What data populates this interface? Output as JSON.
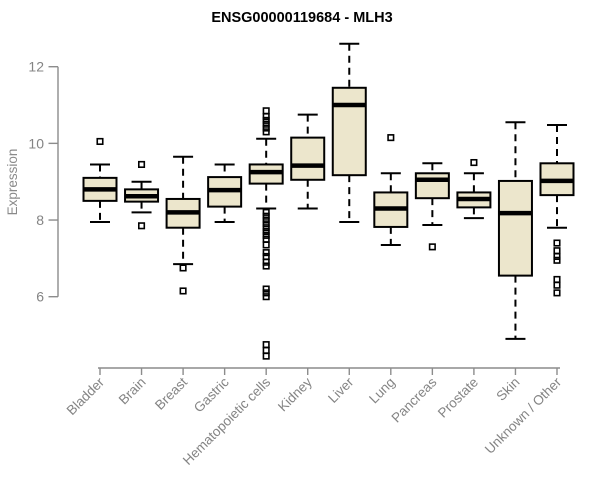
{
  "chart_data": {
    "type": "boxplot",
    "title": "ENSG00000119684 - MLH3",
    "ylabel": "Expression",
    "xlabel": "",
    "ylim": [
      6,
      12
    ],
    "yticks": [
      6,
      8,
      10,
      12
    ],
    "grid": false,
    "legend": "none",
    "categories": [
      "Bladder",
      "Brain",
      "Breast",
      "Gastric",
      "Hematopoietic cells",
      "Kidney",
      "Liver",
      "Lung",
      "Pancreas",
      "Prostate",
      "Skin",
      "Unknown / Other"
    ],
    "series": [
      {
        "category": "Bladder",
        "whisker_low": 7.95,
        "q1": 8.5,
        "median": 8.8,
        "q3": 9.1,
        "whisker_high": 9.45,
        "outliers": [
          10.05
        ]
      },
      {
        "category": "Brain",
        "whisker_low": 8.2,
        "q1": 8.48,
        "median": 8.62,
        "q3": 8.8,
        "whisker_high": 9.0,
        "outliers": [
          9.45,
          7.85
        ]
      },
      {
        "category": "Breast",
        "whisker_low": 6.85,
        "q1": 7.8,
        "median": 8.2,
        "q3": 8.55,
        "whisker_high": 9.65,
        "outliers": [
          6.75,
          6.15
        ]
      },
      {
        "category": "Gastric",
        "whisker_low": 7.95,
        "q1": 8.35,
        "median": 8.78,
        "q3": 9.12,
        "whisker_high": 9.45,
        "outliers": []
      },
      {
        "category": "Hematopoietic cells",
        "whisker_low": 8.3,
        "q1": 8.95,
        "median": 9.25,
        "q3": 9.45,
        "whisker_high": 10.12,
        "outliers": [
          10.3,
          10.4,
          10.5,
          10.6,
          10.7,
          10.85,
          8.2,
          8.1,
          8.0,
          7.9,
          7.8,
          7.7,
          7.6,
          7.5,
          7.35,
          7.15,
          7.05,
          6.9,
          6.8,
          6.2,
          6.1,
          6.0,
          4.75,
          4.6,
          4.45
        ]
      },
      {
        "category": "Kidney",
        "whisker_low": 8.3,
        "q1": 9.05,
        "median": 9.42,
        "q3": 10.15,
        "whisker_high": 10.75,
        "outliers": []
      },
      {
        "category": "Liver",
        "whisker_low": 7.95,
        "q1": 9.17,
        "median": 11.0,
        "q3": 11.45,
        "whisker_high": 12.6,
        "outliers": []
      },
      {
        "category": "Lung",
        "whisker_low": 7.35,
        "q1": 7.82,
        "median": 8.3,
        "q3": 8.72,
        "whisker_high": 9.22,
        "outliers": [
          10.15
        ]
      },
      {
        "category": "Pancreas",
        "whisker_low": 7.87,
        "q1": 8.57,
        "median": 9.05,
        "q3": 9.22,
        "whisker_high": 9.48,
        "outliers": [
          7.3
        ]
      },
      {
        "category": "Prostate",
        "whisker_low": 8.05,
        "q1": 8.33,
        "median": 8.55,
        "q3": 8.72,
        "whisker_high": 9.22,
        "outliers": [
          9.5
        ]
      },
      {
        "category": "Skin",
        "whisker_low": 4.9,
        "q1": 6.55,
        "median": 8.18,
        "q3": 9.02,
        "whisker_high": 10.55,
        "outliers": []
      },
      {
        "category": "Unknown / Other",
        "whisker_low": 7.8,
        "q1": 8.65,
        "median": 9.02,
        "q3": 9.48,
        "whisker_high": 10.48,
        "outliers": [
          7.4,
          7.2,
          7.05,
          6.95,
          6.45,
          6.3,
          6.1
        ]
      }
    ],
    "colors": {
      "box_fill": "#ece6cc",
      "box_border": "#000000",
      "median": "#000000",
      "whisker": "#000000",
      "axis": "#8c8c8c",
      "tick_label": "#848484",
      "title": "#000000",
      "background": "#ffffff"
    }
  }
}
